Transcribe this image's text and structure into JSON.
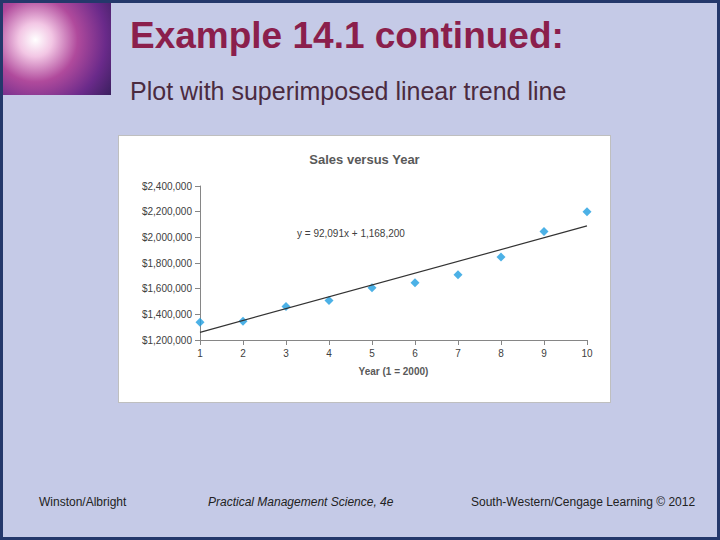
{
  "slide": {
    "title": "Example 14.1 continued:",
    "subtitle": "Plot with superimposed linear trend line",
    "footer": [
      "Winston/Albright",
      "Practical Management Science, 4e",
      "South-Western/Cengage Learning © 2012"
    ]
  },
  "chart_data": {
    "type": "scatter",
    "title": "Sales versus Year",
    "x_label": "Year (1 = 2000)",
    "annotation": "y = 92,091x + 1,168,200",
    "series": [
      {
        "type": "scatter",
        "color": "#1f9ee0",
        "marker": "diamond",
        "x": [
          1,
          2,
          3,
          4,
          5,
          6,
          7,
          8,
          9,
          10
        ],
        "values": [
          1338000,
          1346000,
          1461000,
          1507000,
          1608000,
          1646000,
          1708000,
          1846000,
          2046000,
          2200000
        ]
      },
      {
        "type": "line",
        "color": "#333333",
        "line_style": "solid",
        "x": [
          1,
          10
        ],
        "values": [
          1260000,
          2089000
        ]
      }
    ],
    "xlim": [
      1,
      10
    ],
    "xticks": [
      1,
      2,
      3,
      4,
      5,
      6,
      7,
      8,
      9,
      10
    ],
    "ylim": [
      1200000,
      2400000
    ],
    "yticks": [
      {
        "value": 1200000,
        "label": "$1,200,000"
      },
      {
        "value": 1400000,
        "label": "$1,400,000"
      },
      {
        "value": 1600000,
        "label": "$1,600,000"
      },
      {
        "value": 1800000,
        "label": "$1,800,000"
      },
      {
        "value": 2000000,
        "label": "$2,000,000"
      },
      {
        "value": 2200000,
        "label": "$2,200,000"
      },
      {
        "value": 2400000,
        "label": "$2,400,000"
      }
    ],
    "grid": false
  }
}
